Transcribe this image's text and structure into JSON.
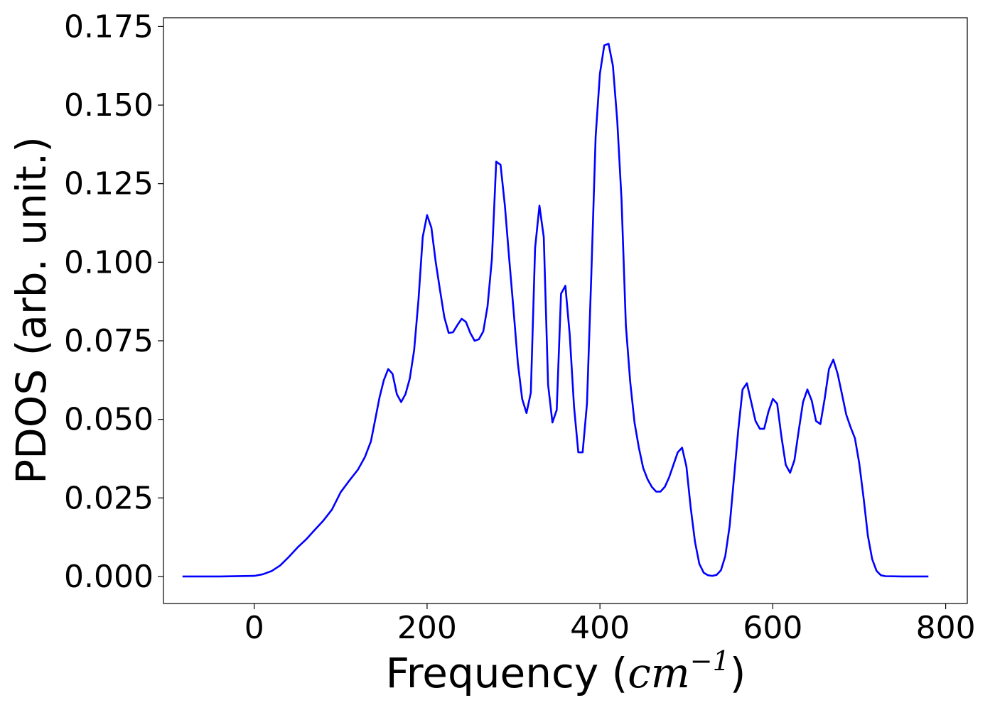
{
  "chart_data": {
    "type": "line",
    "title": "",
    "xlabel": {
      "main": "Frequency (",
      "unit": "cm",
      "exponent": "−1",
      "close": ")"
    },
    "ylabel": "PDOS (arb. unit.)",
    "xlim": [
      -105,
      825
    ],
    "ylim": [
      -0.0086,
      0.1778
    ],
    "xticks": [
      0,
      200,
      400,
      600,
      800
    ],
    "xtick_labels": [
      "0",
      "200",
      "400",
      "600",
      "800"
    ],
    "yticks": [
      0,
      0.025,
      0.05,
      0.075,
      0.1,
      0.125,
      0.15,
      0.175
    ],
    "ytick_labels": [
      "0.000",
      "0.025",
      "0.050",
      "0.075",
      "0.100",
      "0.125",
      "0.150",
      "0.175"
    ],
    "grid": false,
    "series": [
      {
        "color": "#0000ff",
        "x": [
          -83,
          -40,
          0,
          10,
          20,
          30,
          40,
          50,
          60,
          70,
          80,
          90,
          100,
          110,
          120,
          128,
          135,
          140,
          145,
          150,
          155,
          160,
          165,
          170,
          175,
          180,
          185,
          190,
          195,
          200,
          205,
          210,
          215,
          220,
          225,
          230,
          235,
          240,
          245,
          250,
          255,
          260,
          265,
          270,
          275,
          280,
          285,
          290,
          295,
          300,
          305,
          310,
          315,
          320,
          325,
          330,
          335,
          340,
          345,
          350,
          355,
          360,
          365,
          370,
          375,
          380,
          385,
          390,
          395,
          400,
          405,
          410,
          415,
          420,
          425,
          430,
          435,
          440,
          445,
          450,
          455,
          460,
          465,
          470,
          475,
          480,
          485,
          490,
          495,
          500,
          505,
          510,
          515,
          520,
          525,
          530,
          535,
          540,
          545,
          550,
          555,
          560,
          565,
          570,
          575,
          580,
          585,
          590,
          595,
          600,
          605,
          610,
          615,
          620,
          625,
          630,
          635,
          640,
          645,
          650,
          655,
          660,
          665,
          670,
          675,
          680,
          685,
          690,
          695,
          700,
          705,
          710,
          715,
          720,
          725,
          730,
          750,
          780
        ],
        "y": [
          0,
          0,
          0.0002,
          0.0007,
          0.0017,
          0.0035,
          0.0062,
          0.0092,
          0.0118,
          0.0148,
          0.0178,
          0.0213,
          0.0268,
          0.0305,
          0.034,
          0.038,
          0.043,
          0.05,
          0.057,
          0.0625,
          0.066,
          0.0645,
          0.058,
          0.0555,
          0.058,
          0.063,
          0.072,
          0.088,
          0.108,
          0.115,
          0.111,
          0.1,
          0.091,
          0.0825,
          0.0775,
          0.0777,
          0.08,
          0.082,
          0.081,
          0.0775,
          0.075,
          0.0755,
          0.078,
          0.086,
          0.101,
          0.132,
          0.131,
          0.118,
          0.101,
          0.085,
          0.068,
          0.0565,
          0.052,
          0.0585,
          0.1045,
          0.118,
          0.108,
          0.061,
          0.049,
          0.053,
          0.09,
          0.0925,
          0.077,
          0.054,
          0.0395,
          0.0395,
          0.055,
          0.096,
          0.14,
          0.16,
          0.169,
          0.1695,
          0.1625,
          0.145,
          0.12,
          0.08,
          0.062,
          0.049,
          0.041,
          0.0345,
          0.031,
          0.0285,
          0.027,
          0.027,
          0.0285,
          0.0315,
          0.0355,
          0.0395,
          0.041,
          0.035,
          0.022,
          0.011,
          0.004,
          0.0012,
          0.0004,
          0.0002,
          0.0005,
          0.002,
          0.0065,
          0.016,
          0.031,
          0.0465,
          0.0595,
          0.0615,
          0.0555,
          0.0495,
          0.047,
          0.047,
          0.0525,
          0.0565,
          0.055,
          0.0445,
          0.0355,
          0.033,
          0.037,
          0.0465,
          0.0555,
          0.0595,
          0.056,
          0.0495,
          0.0485,
          0.0565,
          0.066,
          0.069,
          0.0645,
          0.058,
          0.0515,
          0.0475,
          0.044,
          0.036,
          0.025,
          0.013,
          0.0055,
          0.0018,
          0.0004,
          0.0001,
          0,
          0
        ]
      }
    ]
  }
}
